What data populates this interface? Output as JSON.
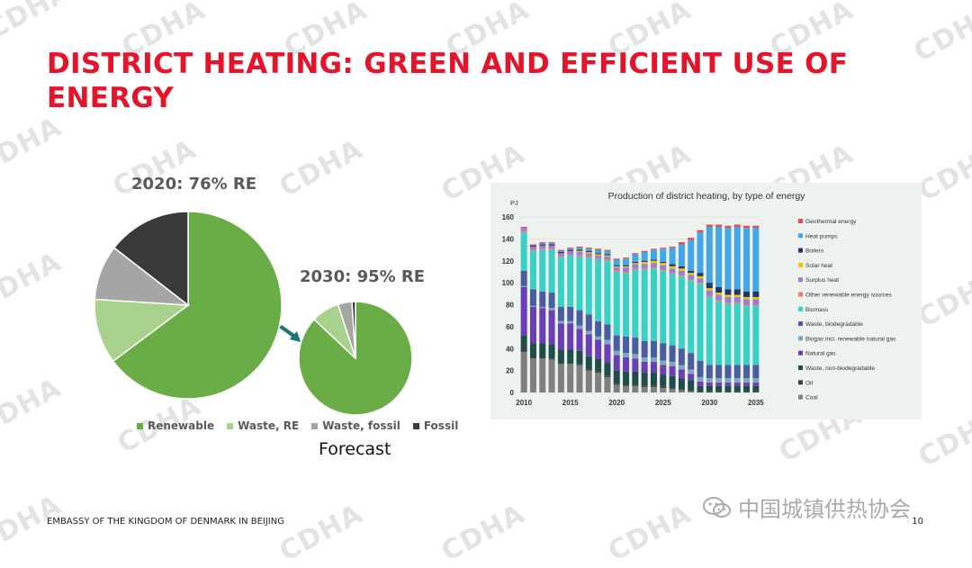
{
  "watermark": "CDHA",
  "title": "DISTRICT HEATING: GREEN AND EFFICIENT USE OF ENERGY",
  "pie2020": {
    "label": "2020: 76% RE",
    "slices": [
      {
        "name": "Renewable",
        "value": 64.8,
        "color": "#6aac45"
      },
      {
        "name": "Waste, RE",
        "value": 11.2,
        "color": "#a9d18e"
      },
      {
        "name": "Waste, fossil",
        "value": 9.5,
        "color": "#a5a5a5"
      },
      {
        "name": "Fossil",
        "value": 14.5,
        "color": "#3a3a3a"
      }
    ]
  },
  "pie2030": {
    "label": "2030: 95% RE",
    "slices": [
      {
        "name": "Renewable",
        "value": 87,
        "color": "#6aac45"
      },
      {
        "name": "Waste, RE",
        "value": 8,
        "color": "#a9d18e"
      },
      {
        "name": "Waste, fossil",
        "value": 4,
        "color": "#a5a5a5"
      },
      {
        "name": "Fossil",
        "value": 1,
        "color": "#3a3a3a"
      }
    ]
  },
  "legend": [
    {
      "label": "Renewable",
      "color": "#6aac45"
    },
    {
      "label": "Waste, RE",
      "color": "#a9d18e"
    },
    {
      "label": "Waste, fossil",
      "color": "#a5a5a5"
    },
    {
      "label": "Fossil",
      "color": "#3a3a3a"
    }
  ],
  "forecast_label": "Forecast",
  "chart_data": {
    "type": "bar",
    "title": "Production of district heating, by type of energy",
    "ylabel": "PJ",
    "ylim": [
      0,
      160
    ],
    "yticks": [
      0,
      20,
      40,
      60,
      80,
      100,
      120,
      140,
      160
    ],
    "xticks": [
      "2010",
      "2015",
      "2020",
      "2025",
      "2030",
      "2035"
    ],
    "categories": [
      "2010",
      "2011",
      "2012",
      "2013",
      "2014",
      "2015",
      "2016",
      "2017",
      "2018",
      "2019",
      "2020",
      "2021",
      "2022",
      "2023",
      "2024",
      "2025",
      "2026",
      "2027",
      "2028",
      "2029",
      "2030",
      "2031",
      "2032",
      "2033",
      "2034",
      "2035"
    ],
    "series": [
      {
        "name": "Coal",
        "color": "#7f7f7f",
        "values": [
          37,
          31,
          31,
          30,
          26,
          26,
          25,
          20,
          18,
          14,
          7,
          6,
          6,
          5,
          5,
          4,
          3,
          2,
          1,
          0,
          0,
          0,
          0,
          0,
          0,
          0
        ]
      },
      {
        "name": "Oil",
        "color": "#404040",
        "values": [
          2,
          1,
          1,
          1,
          1,
          1,
          1,
          1,
          1,
          1,
          1,
          1,
          1,
          1,
          1,
          1,
          1,
          1,
          1,
          1,
          1,
          1,
          1,
          1,
          1,
          1
        ]
      },
      {
        "name": "Waste, non-biodegradable",
        "color": "#1f4e4a",
        "values": [
          13,
          13,
          13,
          13,
          12,
          12,
          12,
          12,
          12,
          12,
          12,
          12,
          12,
          12,
          12,
          11,
          11,
          10,
          9,
          5,
          5,
          5,
          5,
          5,
          5,
          5
        ]
      },
      {
        "name": "Natural gas",
        "color": "#6a3fb5",
        "values": [
          44,
          33,
          32,
          31,
          24,
          24,
          20,
          20,
          17,
          17,
          14,
          13,
          12,
          10,
          10,
          9,
          9,
          8,
          6,
          4,
          3,
          3,
          3,
          3,
          3,
          3
        ]
      },
      {
        "name": "Biogas incl. renewable natural gas",
        "color": "#7fa8bd",
        "values": [
          1,
          1,
          1,
          2,
          2,
          2,
          3,
          3,
          3,
          4,
          4,
          4,
          4,
          4,
          4,
          4,
          4,
          4,
          4,
          4,
          4,
          4,
          4,
          4,
          4,
          4
        ]
      },
      {
        "name": "Waste, biodegradable",
        "color": "#4a5d9e",
        "values": [
          14,
          15,
          14,
          14,
          13,
          13,
          14,
          15,
          14,
          14,
          14,
          15,
          15,
          15,
          15,
          16,
          15,
          15,
          15,
          15,
          12,
          12,
          12,
          12,
          12,
          12
        ]
      },
      {
        "name": "Biomass",
        "color": "#39d0c6",
        "values": [
          35,
          35,
          38,
          39,
          45,
          47,
          49,
          52,
          56,
          58,
          58,
          58,
          62,
          65,
          66,
          66,
          65,
          66,
          66,
          70,
          62,
          58,
          56,
          56,
          54,
          54
        ]
      },
      {
        "name": "Other renewable energy sources",
        "color": "#ed7d6b",
        "values": [
          1,
          1,
          1,
          1,
          1,
          1,
          1,
          1,
          1,
          1,
          1,
          1,
          1,
          1,
          1,
          1,
          1,
          1,
          1,
          1,
          1,
          1,
          1,
          1,
          1,
          1
        ]
      },
      {
        "name": "Surplus heat",
        "color": "#9b7dd6",
        "values": [
          3,
          3,
          3,
          3,
          3,
          3,
          3,
          3,
          3,
          3,
          3,
          4,
          4,
          4,
          4,
          4,
          4,
          4,
          4,
          4,
          5,
          5,
          5,
          5,
          5,
          5
        ]
      },
      {
        "name": "Solar heat",
        "color": "#f2c400",
        "values": [
          0,
          0,
          0,
          0,
          0,
          0,
          1,
          1,
          1,
          1,
          1,
          1,
          1,
          2,
          2,
          2,
          2,
          2,
          2,
          2,
          2,
          2,
          2,
          2,
          2,
          2
        ]
      },
      {
        "name": "Boilers",
        "color": "#1f3864",
        "values": [
          0,
          1,
          1,
          1,
          1,
          1,
          1,
          1,
          1,
          1,
          1,
          1,
          1,
          1,
          1,
          1,
          2,
          2,
          2,
          3,
          5,
          5,
          5,
          5,
          5,
          5
        ]
      },
      {
        "name": "Heat pumps",
        "color": "#44a6e6",
        "values": [
          0,
          0,
          1,
          1,
          1,
          1,
          2,
          2,
          3,
          3,
          5,
          6,
          7,
          8,
          9,
          12,
          15,
          20,
          28,
          37,
          51,
          55,
          56,
          57,
          58,
          58
        ]
      },
      {
        "name": "Geothermal energy",
        "color": "#e84c4c",
        "values": [
          1,
          1,
          1,
          1,
          1,
          1,
          1,
          1,
          1,
          1,
          1,
          1,
          1,
          1,
          1,
          1,
          1,
          2,
          2,
          2,
          2,
          2,
          2,
          2,
          2,
          2
        ]
      }
    ]
  },
  "footer": "EMBASSY OF THE KINGDOM OF DENMARK IN BEIJING",
  "page_number": "10",
  "wechat_label": "中国城镇供热协会"
}
